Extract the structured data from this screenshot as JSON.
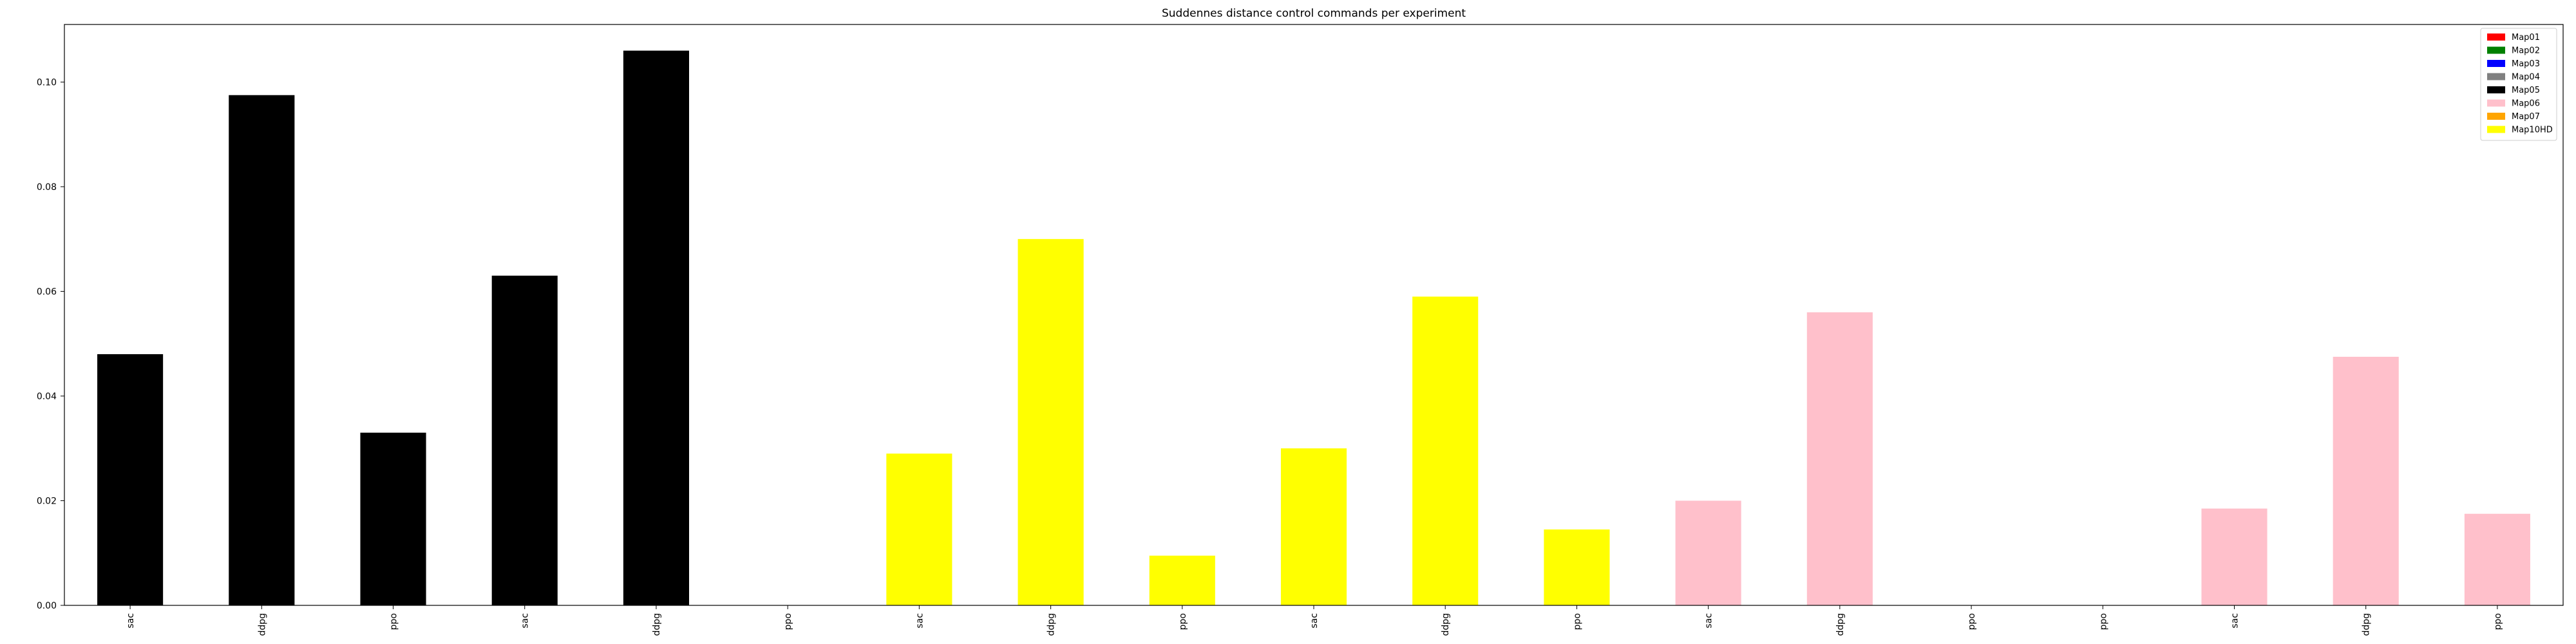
{
  "chart_data": {
    "type": "bar",
    "title": "Suddennes distance control commands per experiment",
    "xlabel": "",
    "ylabel": "",
    "ylim": [
      0,
      0.111
    ],
    "yticks": [
      0.0,
      0.02,
      0.04,
      0.06,
      0.08,
      0.1
    ],
    "ytick_labels": [
      "0.00",
      "0.02",
      "0.04",
      "0.06",
      "0.08",
      "0.10"
    ],
    "grid": false,
    "legend_position": "top-right",
    "categories": [
      "sac",
      "ddpg",
      "ppo",
      "sac",
      "ddpg",
      "ppo",
      "sac",
      "ddpg",
      "ppo",
      "sac",
      "ddpg",
      "ppo",
      "sac",
      "ddpg",
      "ppo",
      "ppo",
      "sac",
      "ddpg",
      "ppo"
    ],
    "values": [
      0.048,
      0.0975,
      0.033,
      0.063,
      0.106,
      0.0,
      0.029,
      0.07,
      0.0095,
      0.03,
      0.059,
      0.0145,
      0.02,
      0.056,
      0.0,
      0.0,
      0.0185,
      0.0475,
      0.0175
    ],
    "bar_colors": [
      "#000000",
      "#000000",
      "#000000",
      "#000000",
      "#000000",
      "#ffffff",
      "#ffff00",
      "#ffff00",
      "#ffff00",
      "#ffff00",
      "#ffff00",
      "#ffff00",
      "#ffc0cb",
      "#ffc0cb",
      "#ffffff",
      "#ffffff",
      "#ffc0cb",
      "#ffc0cb",
      "#ffc0cb"
    ],
    "legend": [
      {
        "name": "Map01",
        "color": "#ff0000"
      },
      {
        "name": "Map02",
        "color": "#008000"
      },
      {
        "name": "Map03",
        "color": "#0000ff"
      },
      {
        "name": "Map04",
        "color": "#808080"
      },
      {
        "name": "Map05",
        "color": "#000000"
      },
      {
        "name": "Map06",
        "color": "#ffc0cb"
      },
      {
        "name": "Map07",
        "color": "#ffa500"
      },
      {
        "name": "Map10HD",
        "color": "#ffff00"
      }
    ]
  }
}
